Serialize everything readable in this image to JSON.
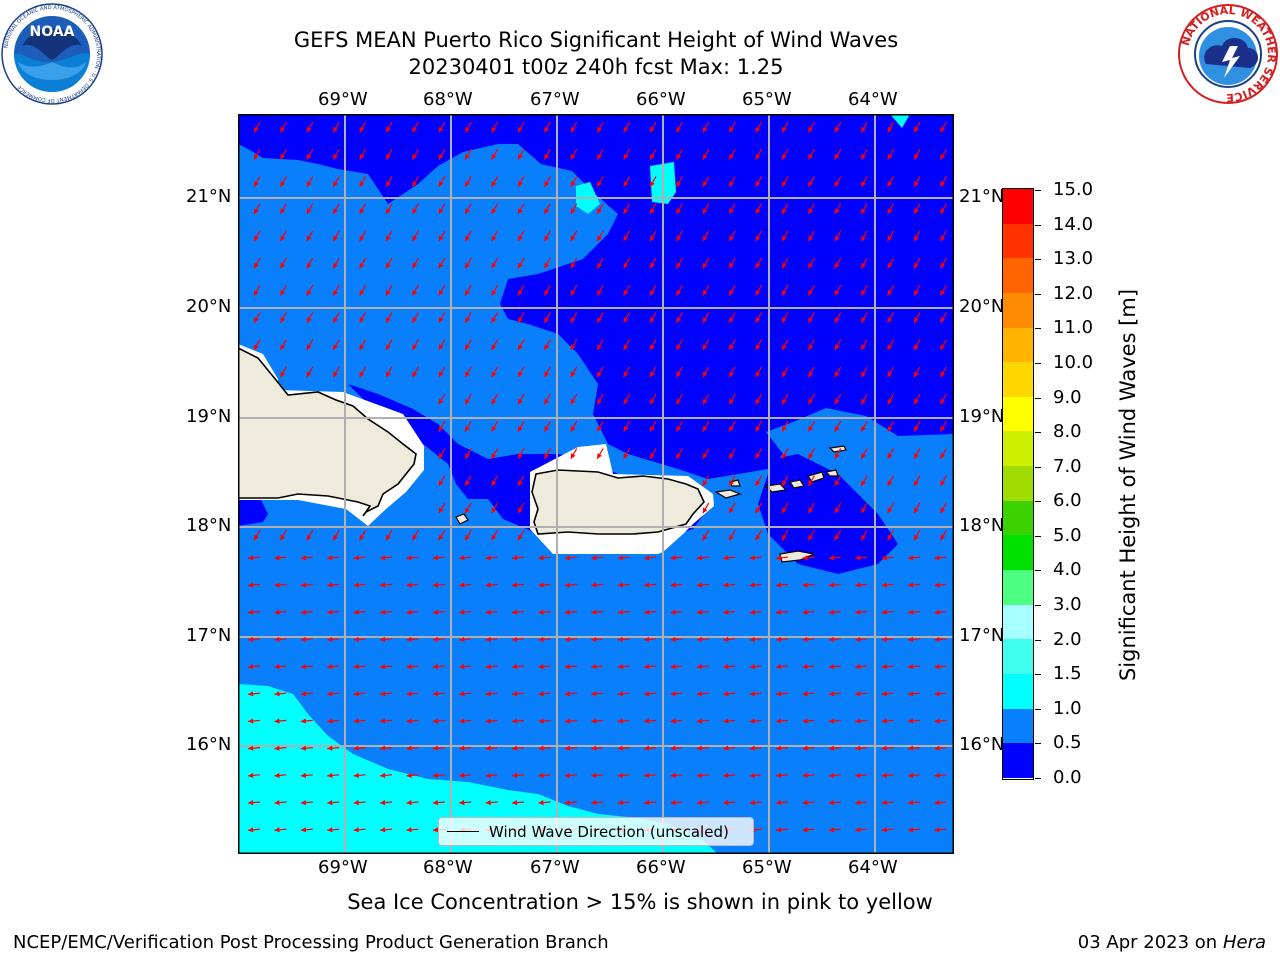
{
  "header": {
    "title": "GEFS MEAN Puerto Rico Significant Height of Wind Waves",
    "subtitle": "20230401 t00z 240h fcst   Max: 1.25"
  },
  "logos": {
    "noaa_text": "NOAA",
    "noaa_ring_text": "NATIONAL OCEANIC AND ATMOSPHERIC ADMINISTRATION · U.S. DEPARTMENT OF COMMERCE",
    "nws_ring_text": "NATIONAL WEATHER SERVICE"
  },
  "map": {
    "lon_labels": [
      "69°W",
      "68°W",
      "67°W",
      "66°W",
      "65°W",
      "64°W"
    ],
    "lat_labels": [
      "21°N",
      "20°N",
      "19°N",
      "18°N",
      "17°N",
      "16°N"
    ],
    "extent": {
      "lon_min": -70.0,
      "lon_max": -63.25,
      "lat_min": 15.0,
      "lat_max": 21.75
    },
    "legend_label": "Wind Wave Direction (unscaled)",
    "arrow_color": "#ff0000",
    "land_color": "#efebdc",
    "note": "Sea Ice Concentration > 15% is shown in pink to yellow"
  },
  "colorbar": {
    "title": "Significant Height of Wind Waves [m]",
    "ticks": [
      "0.0",
      "0.5",
      "1.0",
      "1.5",
      "2.0",
      "3.0",
      "4.0",
      "5.0",
      "6.0",
      "7.0",
      "8.0",
      "9.0",
      "10.0",
      "11.0",
      "12.0",
      "13.0",
      "14.0",
      "15.0"
    ],
    "colors": [
      "#0000ff",
      "#0a7ffb",
      "#00ffff",
      "#40ffee",
      "#a8ffff",
      "#4cff80",
      "#00e100",
      "#3cd200",
      "#a0dc00",
      "#cdf000",
      "#ffff00",
      "#ffd700",
      "#ffb400",
      "#ff8c00",
      "#ff6400",
      "#ff3200",
      "#ff0000"
    ]
  },
  "footer": {
    "left": "NCEP/EMC/Verification Post Processing Product Generation Branch",
    "right_date": "03 Apr 2023 on",
    "right_host": "Hera"
  }
}
